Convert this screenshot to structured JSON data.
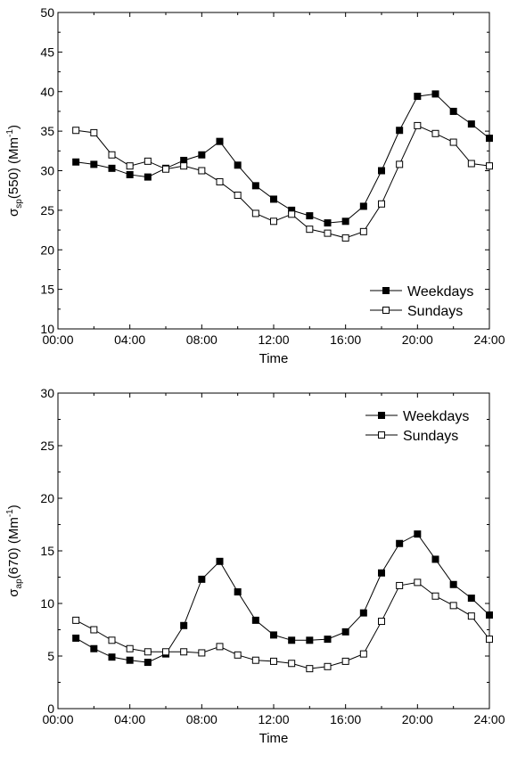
{
  "chart_data": [
    {
      "type": "line",
      "xlabel": "Time",
      "ylabel": {
        "symbol": "σ",
        "sub": "sp",
        "rest": "(550) (Mm",
        "sup": "-1",
        "close": ")"
      },
      "xlim": [
        0,
        24
      ],
      "ylim": [
        10,
        50
      ],
      "x_ticks": [
        "00:00",
        "04:00",
        "08:00",
        "12:00",
        "16:00",
        "20:00",
        "24:00"
      ],
      "y_ticks": [
        "10",
        "15",
        "20",
        "25",
        "30",
        "35",
        "40",
        "45",
        "50"
      ],
      "legend_position": "bottom-right",
      "grid": false,
      "x": [
        1,
        2,
        3,
        4,
        5,
        6,
        7,
        8,
        9,
        10,
        11,
        12,
        13,
        14,
        15,
        16,
        17,
        18,
        19,
        20,
        21,
        22,
        23,
        24
      ],
      "series": [
        {
          "name": "Weekdays",
          "marker": "filled-square",
          "values": [
            31.1,
            30.8,
            30.3,
            29.5,
            29.2,
            30.3,
            31.3,
            32.0,
            33.7,
            30.7,
            28.1,
            26.4,
            25.0,
            24.3,
            23.4,
            23.6,
            25.5,
            30.0,
            35.1,
            39.4,
            39.7,
            37.5,
            35.9,
            34.1
          ]
        },
        {
          "name": "Sundays",
          "marker": "open-square",
          "values": [
            35.1,
            34.8,
            32.0,
            30.6,
            31.2,
            30.2,
            30.6,
            30.0,
            28.6,
            26.9,
            24.6,
            23.6,
            24.5,
            22.6,
            22.1,
            21.5,
            22.3,
            25.8,
            30.8,
            35.7,
            34.7,
            33.6,
            30.9,
            30.6
          ]
        }
      ]
    },
    {
      "type": "line",
      "xlabel": "Time",
      "ylabel": {
        "symbol": "σ",
        "sub": "ap",
        "rest": "(670) (Mm",
        "sup": "-1",
        "close": ")"
      },
      "xlim": [
        0,
        24
      ],
      "ylim": [
        0,
        30
      ],
      "x_ticks": [
        "00:00",
        "04:00",
        "08:00",
        "12:00",
        "16:00",
        "20:00",
        "24:00"
      ],
      "y_ticks": [
        "0",
        "5",
        "10",
        "15",
        "20",
        "25",
        "30"
      ],
      "legend_position": "top-right",
      "grid": false,
      "x": [
        1,
        2,
        3,
        4,
        5,
        6,
        7,
        8,
        9,
        10,
        11,
        12,
        13,
        14,
        15,
        16,
        17,
        18,
        19,
        20,
        21,
        22,
        23,
        24
      ],
      "series": [
        {
          "name": "Weekdays",
          "marker": "filled-square",
          "values": [
            6.7,
            5.7,
            4.9,
            4.6,
            4.4,
            5.2,
            7.9,
            12.3,
            14.0,
            11.1,
            8.4,
            7.0,
            6.5,
            6.5,
            6.6,
            7.3,
            9.1,
            12.9,
            15.7,
            16.6,
            14.2,
            11.8,
            10.5,
            8.9
          ]
        },
        {
          "name": "Sundays",
          "marker": "open-square",
          "values": [
            8.4,
            7.5,
            6.5,
            5.7,
            5.4,
            5.4,
            5.4,
            5.3,
            5.9,
            5.1,
            4.6,
            4.5,
            4.3,
            3.8,
            4.0,
            4.5,
            5.2,
            8.3,
            11.7,
            12.0,
            10.7,
            9.8,
            8.8,
            6.6
          ]
        }
      ]
    }
  ]
}
